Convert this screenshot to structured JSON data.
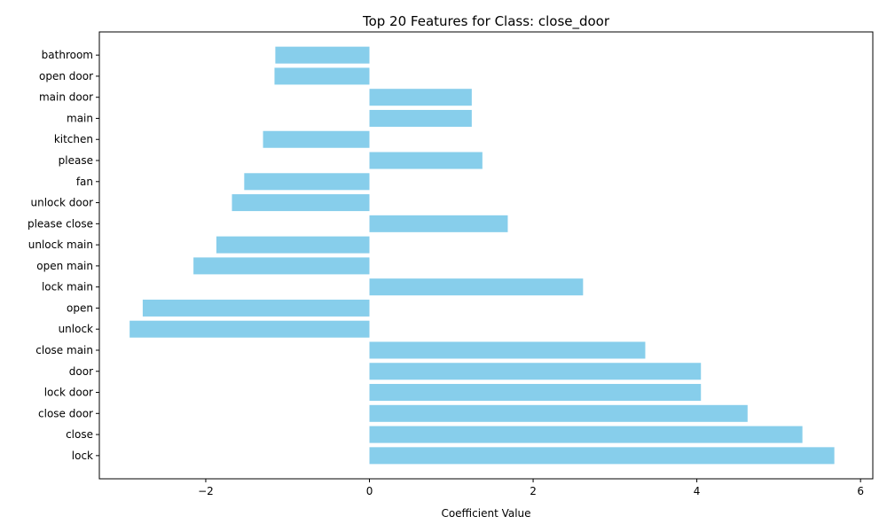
{
  "chart_data": {
    "type": "bar",
    "orientation": "horizontal",
    "title": "Top 20 Features for Class: close_door",
    "xlabel": "Coefficient Value",
    "ylabel": "",
    "xlim": [
      -3.3,
      6.15
    ],
    "xticks": [
      -2,
      0,
      2,
      4,
      6
    ],
    "xtick_labels": [
      "−2",
      "0",
      "2",
      "4",
      "6"
    ],
    "grid": false,
    "color": "#87ceeb",
    "categories": [
      "lock",
      "close",
      "close door",
      "lock door",
      "door",
      "close main",
      "unlock",
      "open",
      "lock main",
      "open main",
      "unlock main",
      "please close",
      "unlock door",
      "fan",
      "please",
      "kitchen",
      "main",
      "main door",
      "open door",
      "bathroom"
    ],
    "values": [
      5.68,
      5.29,
      4.62,
      4.05,
      4.05,
      3.37,
      -2.93,
      -2.77,
      2.61,
      -2.15,
      -1.87,
      1.69,
      -1.68,
      -1.53,
      1.38,
      -1.3,
      1.25,
      1.25,
      -1.16,
      -1.15
    ]
  }
}
